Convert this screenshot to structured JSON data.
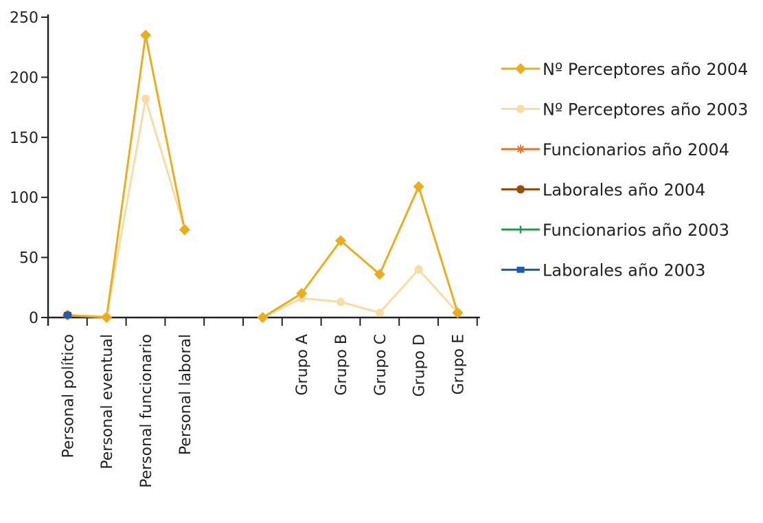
{
  "chart_data": {
    "type": "line",
    "title": "",
    "xlabel": "",
    "ylabel": "",
    "ylim": [
      0,
      250
    ],
    "yticks": [
      0,
      50,
      100,
      150,
      200,
      250
    ],
    "grid": false,
    "legend_position": "right",
    "categories": [
      "Personal político",
      "Personal eventual",
      "Personal funcionario",
      "Personal laboral",
      "",
      "",
      "Grupo A",
      "Grupo B",
      "Grupo C",
      "Grupo D",
      "Grupo E"
    ],
    "series": [
      {
        "name": "Nº Perceptores año 2004",
        "color": "#E8AE1E",
        "marker": "diamond",
        "points": [
          {
            "x": 0.5,
            "y": 2
          },
          {
            "x": 1.5,
            "y": 0
          },
          {
            "x": 2.5,
            "y": 235
          },
          {
            "x": 3.5,
            "y": 73
          },
          {
            "x": 5.5,
            "y": 0
          },
          {
            "x": 6.5,
            "y": 20
          },
          {
            "x": 7.5,
            "y": 64
          },
          {
            "x": 8.5,
            "y": 36
          },
          {
            "x": 9.5,
            "y": 109
          },
          {
            "x": 10.5,
            "y": 4
          }
        ]
      },
      {
        "name": "Nº Perceptores año 2003",
        "color": "#F7DCA4",
        "marker": "circle",
        "points": [
          {
            "x": 0.5,
            "y": 2
          },
          {
            "x": 1.5,
            "y": 1
          },
          {
            "x": 2.5,
            "y": 182
          },
          {
            "x": 3.5,
            "y": 74
          },
          {
            "x": 5.5,
            "y": 0
          },
          {
            "x": 6.5,
            "y": 16
          },
          {
            "x": 7.5,
            "y": 13
          },
          {
            "x": 8.5,
            "y": 4
          },
          {
            "x": 9.5,
            "y": 40
          },
          {
            "x": 10.5,
            "y": 4
          }
        ]
      },
      {
        "name": "Funcionarios año 2004",
        "color": "#E8701E",
        "marker": "asterisk",
        "points": [
          {
            "x": 0.5,
            "y": 2
          }
        ]
      },
      {
        "name": "Laborales año 2004",
        "color": "#9C4A0C",
        "marker": "circle",
        "points": [
          {
            "x": 0.5,
            "y": 2
          }
        ]
      },
      {
        "name": "Funcionarios año 2003",
        "color": "#1E9C4A",
        "marker": "tick",
        "points": [
          {
            "x": 0.5,
            "y": 2
          }
        ]
      },
      {
        "name": "Laborales año 2003",
        "color": "#1E5CB0",
        "marker": "square",
        "points": [
          {
            "x": 0.5,
            "y": 2
          }
        ]
      }
    ]
  }
}
